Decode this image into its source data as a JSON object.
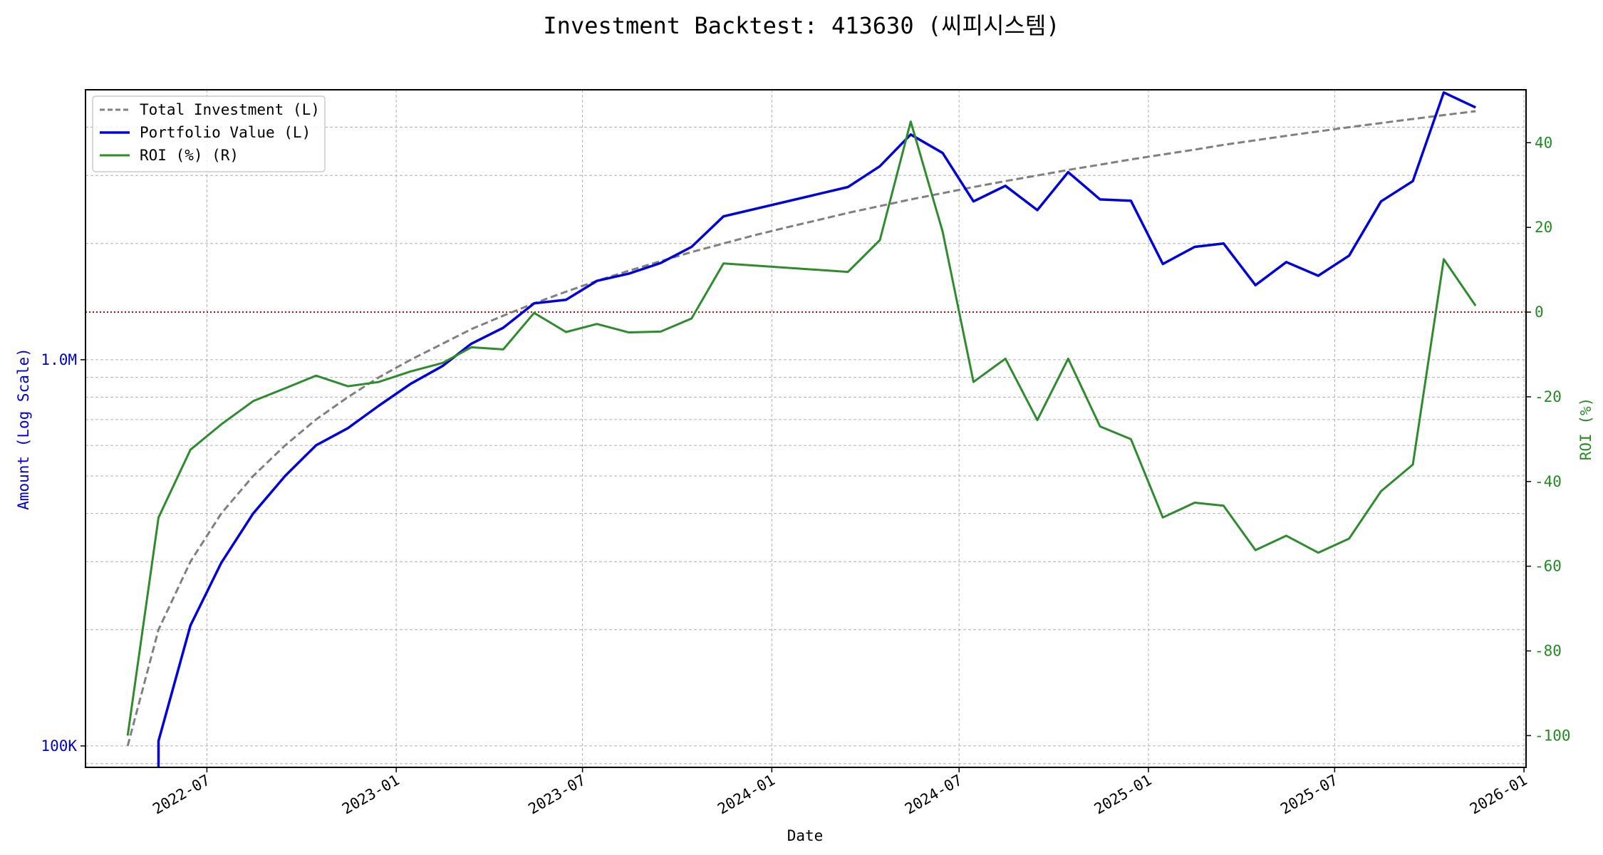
{
  "chart_data": {
    "type": "line",
    "title": "Investment Backtest: 413630 (씨피시스템)",
    "xlabel": "Date",
    "ylabel_left": "Amount (Log Scale)",
    "ylabel_right": "ROI (%)",
    "left_scale": "log",
    "ylim_left": [
      88000,
      5000000
    ],
    "ylim_right": [
      -107.5,
      52.5
    ],
    "xlim": [
      "2022-03-05",
      "2026-01-03"
    ],
    "grid": true,
    "legend_position": "top-left",
    "colors": {
      "investment": "#808080",
      "portfolio": "#0000dd",
      "roi": "#2e8b2e",
      "zero_line": "#dd0000",
      "left_axis": "#0000cc",
      "right_axis": "#228b22"
    },
    "x_ticks": [
      {
        "date": "2022-07-01",
        "label": "2022-07"
      },
      {
        "date": "2023-01-01",
        "label": "2023-01"
      },
      {
        "date": "2023-07-01",
        "label": "2023-07"
      },
      {
        "date": "2024-01-01",
        "label": "2024-01"
      },
      {
        "date": "2024-07-01",
        "label": "2024-07"
      },
      {
        "date": "2025-01-01",
        "label": "2025-01"
      },
      {
        "date": "2025-07-01",
        "label": "2025-07"
      },
      {
        "date": "2026-01-01",
        "label": "2026-01"
      }
    ],
    "y_ticks_left": [
      {
        "value": 100000,
        "label": "100K"
      },
      {
        "value": 1000000,
        "label": "1.0M"
      }
    ],
    "y_ticks_right": [
      -100,
      -80,
      -60,
      -40,
      -20,
      0,
      20,
      40
    ],
    "series": [
      {
        "name": "Total Investment (L)",
        "axis": "left",
        "x": [
          "2022-04-15",
          "2022-05-15",
          "2022-06-15",
          "2022-07-15",
          "2022-08-15",
          "2022-09-15",
          "2022-10-15",
          "2022-11-15",
          "2022-12-15",
          "2023-01-15",
          "2023-02-15",
          "2023-03-15",
          "2023-04-15",
          "2023-05-15",
          "2023-06-15",
          "2023-07-15",
          "2023-08-15",
          "2023-09-15",
          "2023-10-15",
          "2023-11-15",
          "2023-12-15",
          "2024-01-15",
          "2024-02-15",
          "2024-03-15",
          "2024-04-15",
          "2024-05-15",
          "2024-06-15",
          "2024-07-15",
          "2024-08-15",
          "2024-09-15",
          "2024-10-15",
          "2024-11-15",
          "2024-12-15",
          "2025-01-15",
          "2025-02-15",
          "2025-03-15",
          "2025-04-15",
          "2025-05-15",
          "2025-06-15",
          "2025-07-15",
          "2025-08-15",
          "2025-09-15",
          "2025-10-15",
          "2025-11-15"
        ],
        "values": [
          100000,
          200000,
          300000,
          400000,
          500000,
          600000,
          700000,
          800000,
          900000,
          1000000,
          1100000,
          1200000,
          1300000,
          1400000,
          1500000,
          1600000,
          1700000,
          1800000,
          1900000,
          2000000,
          2100000,
          2200000,
          2300000,
          2400000,
          2500000,
          2600000,
          2700000,
          2800000,
          2900000,
          3000000,
          3100000,
          3200000,
          3300000,
          3400000,
          3500000,
          3600000,
          3700000,
          3800000,
          3900000,
          4000000,
          4100000,
          4200000,
          4300000,
          4400000
        ]
      },
      {
        "name": "Portfolio Value (L)",
        "axis": "left",
        "x": [
          "2022-05-15",
          "2022-05-15",
          "2022-06-15",
          "2022-07-15",
          "2022-08-15",
          "2022-09-15",
          "2022-10-15",
          "2022-11-15",
          "2022-12-15",
          "2023-01-15",
          "2023-02-15",
          "2023-03-15",
          "2023-04-15",
          "2023-05-15",
          "2023-06-15",
          "2023-07-15",
          "2023-08-15",
          "2023-09-15",
          "2023-10-15",
          "2023-11-15",
          "2024-03-15",
          "2024-04-15",
          "2024-05-15",
          "2024-06-15",
          "2024-07-15",
          "2024-08-15",
          "2024-09-15",
          "2024-10-15",
          "2024-11-15",
          "2024-12-15",
          "2025-01-15",
          "2025-02-15",
          "2025-03-15",
          "2025-04-15",
          "2025-05-15",
          "2025-06-15",
          "2025-07-15",
          "2025-08-15",
          "2025-09-15",
          "2025-10-15",
          "2025-11-15"
        ],
        "values": [
          85000,
          103000,
          205000,
          298000,
          400000,
          500000,
          600000,
          665000,
          760000,
          866000,
          963000,
          1100000,
          1210000,
          1400000,
          1430000,
          1600000,
          1670000,
          1780000,
          1960000,
          2350000,
          2800000,
          3170000,
          3830000,
          3430000,
          2570000,
          2820000,
          2440000,
          3060000,
          2600000,
          2580000,
          1770000,
          1960000,
          2000000,
          1560000,
          1790000,
          1650000,
          1860000,
          2570000,
          2900000,
          4920000,
          4500000
        ]
      },
      {
        "name": "ROI (%) (R)",
        "axis": "right",
        "x": [
          "2022-04-15",
          "2022-05-15",
          "2022-06-15",
          "2022-07-15",
          "2022-08-15",
          "2022-09-15",
          "2022-10-15",
          "2022-11-15",
          "2022-12-15",
          "2023-01-15",
          "2023-02-15",
          "2023-03-15",
          "2023-04-15",
          "2023-05-15",
          "2023-06-15",
          "2023-07-15",
          "2023-08-15",
          "2023-09-15",
          "2023-10-15",
          "2023-11-15",
          "2024-03-15",
          "2024-04-15",
          "2024-05-15",
          "2024-06-15",
          "2024-07-15",
          "2024-08-15",
          "2024-09-15",
          "2024-10-15",
          "2024-11-15",
          "2024-12-15",
          "2025-01-15",
          "2025-02-15",
          "2025-03-15",
          "2025-04-15",
          "2025-05-15",
          "2025-06-15",
          "2025-07-15",
          "2025-08-15",
          "2025-09-15",
          "2025-10-15",
          "2025-11-15"
        ],
        "values": [
          -100,
          -48.5,
          -32.5,
          -26.5,
          -21,
          -18,
          -15,
          -17.5,
          -16.5,
          -14,
          -12,
          -8.3,
          -8.8,
          -0.2,
          -4.7,
          -2.8,
          -4.8,
          -4.6,
          -1.5,
          11.5,
          9.5,
          17,
          45,
          19,
          -16.5,
          -11,
          -25.5,
          -11,
          -27,
          -30,
          -48.5,
          -45,
          -45.7,
          -56.2,
          -52.8,
          -56.8,
          -53.5,
          -42.3,
          -36,
          12.5,
          1.5
        ]
      }
    ],
    "reference_line": {
      "axis": "right",
      "value": 0
    }
  }
}
